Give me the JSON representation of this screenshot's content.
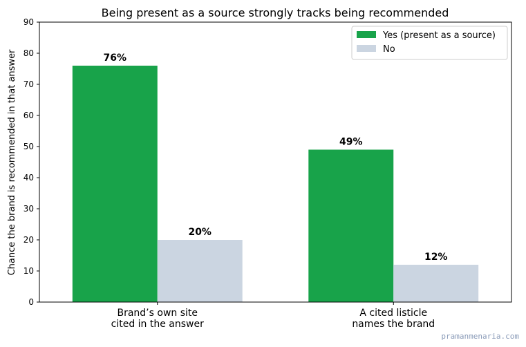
{
  "chart_data": {
    "type": "bar",
    "title": "Being present as a source strongly tracks being recommended",
    "xlabel": "",
    "ylabel": "Chance the brand is recommended in that answer",
    "ylim": [
      0,
      90
    ],
    "yticks": [
      0,
      10,
      20,
      30,
      40,
      50,
      60,
      70,
      80,
      90
    ],
    "categories": [
      [
        "Brand’s own site",
        "cited in the answer"
      ],
      [
        "A cited listicle",
        "names the brand"
      ]
    ],
    "series": [
      {
        "name": "Yes (present as a source)",
        "color": "#18a34a",
        "values": [
          76,
          49
        ],
        "labels": [
          "76%",
          "49%"
        ]
      },
      {
        "name": "No",
        "color": "#cbd5e1",
        "values": [
          20,
          12
        ],
        "labels": [
          "20%",
          "12%"
        ]
      }
    ],
    "legend": "top-right",
    "grid": false
  },
  "watermark": "pramanmenaria.com"
}
